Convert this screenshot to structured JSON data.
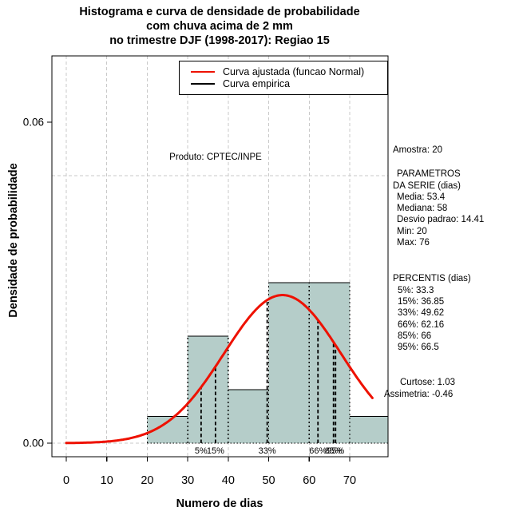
{
  "title": {
    "lines": [
      "Histograma e curva de densidade de probabilidade",
      "com chuva acima de 2 mm",
      "no trimestre DJF (1998-2017): Regiao 15"
    ]
  },
  "legend": {
    "fitted_label": "Curva ajustada (funcao Normal)",
    "empirical_label": "Curva empirica"
  },
  "annotation": "Produto: CPTEC/INPE",
  "stats": {
    "sample": "Amostra: 20",
    "params_title_1": "PARAMETROS",
    "params_title_2": "DA SERIE (dias)",
    "media": "Media: 53.4",
    "mediana": "Mediana: 58",
    "desvio": "Desvio padrao: 14.41",
    "min": "Min: 20",
    "max": "Max: 76",
    "percentis_title": "PERCENTIS (dias)",
    "p5": "5%: 33.3",
    "p15": "15%: 36.85",
    "p33": "33%: 49.62",
    "p66": "66%: 62.16",
    "p85": "85%: 66",
    "p95": "95%: 66.5",
    "curtose": "Curtose: 1.03",
    "assimetria": "Assimetria: -0.46"
  },
  "chart_data": {
    "type": "bar",
    "subtype": "histogram-with-density",
    "title": "Histograma e curva de densidade de probabilidade com chuva acima de 2 mm no trimestre DJF (1998-2017): Regiao 15",
    "xlabel": "Numero de dias",
    "ylabel": "Densidade de probabilidade",
    "xlim": [
      0,
      79
    ],
    "ylim": [
      0,
      0.075
    ],
    "grid": true,
    "legend_position": "top-right-inside",
    "bins": [
      {
        "from": 20,
        "to": 30,
        "density": 0.005,
        "count": 1
      },
      {
        "from": 30,
        "to": 40,
        "density": 0.02,
        "count": 4
      },
      {
        "from": 40,
        "to": 50,
        "density": 0.01,
        "count": 2
      },
      {
        "from": 50,
        "to": 60,
        "density": 0.03,
        "count": 6
      },
      {
        "from": 60,
        "to": 70,
        "density": 0.03,
        "count": 6
      },
      {
        "from": 70,
        "to": 80,
        "density": 0.005,
        "count": 1
      }
    ],
    "normal_curve": {
      "mean": 53.4,
      "sd": 14.41,
      "x_from": 0,
      "x_to": 75.8,
      "peak_density": 0.0277
    },
    "percentile_lines": [
      {
        "label": "5%",
        "x": 33.3
      },
      {
        "label": "15%",
        "x": 36.85
      },
      {
        "label": "33%",
        "x": 49.62
      },
      {
        "label": "66%",
        "x": 62.16
      },
      {
        "label": "85%",
        "x": 66
      },
      {
        "label": "95%",
        "x": 66.5
      }
    ],
    "x_ticks": [
      {
        "v": 0,
        "label": "0"
      },
      {
        "v": 10,
        "label": "10"
      },
      {
        "v": 20,
        "label": "20"
      },
      {
        "v": 30,
        "label": "30"
      },
      {
        "v": 40,
        "label": "40"
      },
      {
        "v": 50,
        "label": "50"
      },
      {
        "v": 60,
        "label": "60"
      },
      {
        "v": 70,
        "label": "70"
      }
    ],
    "y_ticks": [
      {
        "v": 0,
        "label": "0.00"
      },
      {
        "v": 0.06,
        "label": "0.06"
      }
    ],
    "h_gridlines": [
      0,
      0.05
    ],
    "colors": {
      "bar_fill": "#b5cdc9",
      "fitted_curve": "#ee1100",
      "empirical_curve": "#000000",
      "grid": "#c9c9c9",
      "axis": "#000000"
    }
  }
}
